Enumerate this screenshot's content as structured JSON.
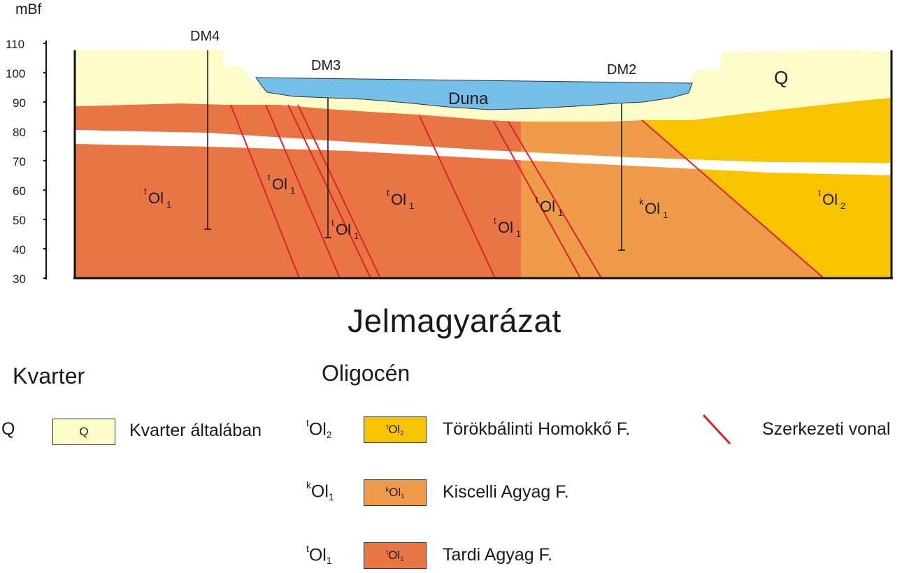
{
  "section": {
    "y_axis_unit": "mBf",
    "y_ticks": [
      "110",
      "100",
      "90",
      "80",
      "70",
      "60",
      "50",
      "40",
      "30"
    ],
    "wells": [
      "DM4",
      "DM3",
      "DM2"
    ],
    "river_label": "Duna",
    "unit_labels": {
      "q": "Q",
      "tol1_pre": "t",
      "tol1_main": "Ol",
      "tol1_sub": "1",
      "kol1_pre": "k",
      "kol1_main": "Ol",
      "kol1_sub": "1",
      "tol2_pre": "t",
      "tol2_main": "Ol",
      "tol2_sub": "2"
    }
  },
  "legend": {
    "title": "Jelmagyarázat",
    "groups": {
      "kvarter": "Kvarter",
      "oligocen": "Oligocén"
    },
    "items": {
      "q": {
        "code": "Q",
        "swatch_text": "Q",
        "label": "Kvarter általában",
        "color": "#fefdc9"
      },
      "tol2": {
        "pre": "t",
        "main": "Ol",
        "sub": "2",
        "label": "Törökbálinti Homokkő F.",
        "color": "#f8c300"
      },
      "kol1": {
        "pre": "k",
        "main": "Ol",
        "sub": "1",
        "label": "Kiscelli Agyag F.",
        "color": "#ef9b4a"
      },
      "tol1": {
        "pre": "t",
        "main": "Ol",
        "sub": "1",
        "label": "Tardi Agyag F.",
        "color": "#e87543"
      }
    },
    "fault": {
      "label": "Szerkezeti vonal",
      "color": "#d9242b"
    }
  },
  "colors": {
    "water": "#74bfe9",
    "outline": "#111111"
  }
}
